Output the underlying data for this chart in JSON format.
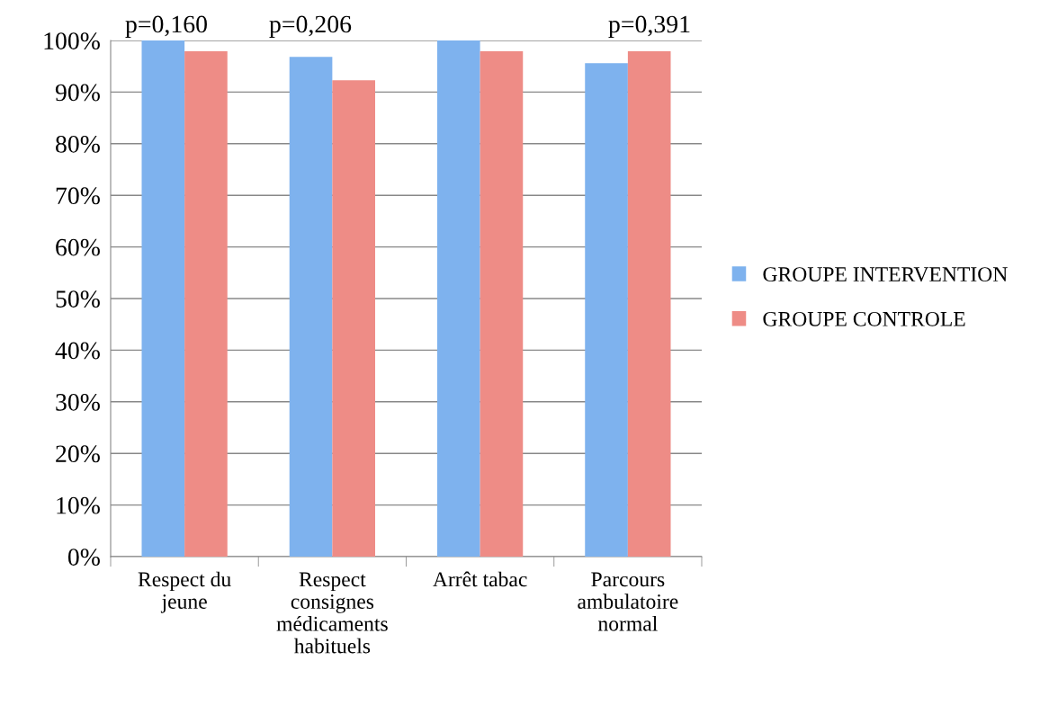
{
  "chart_data": {
    "type": "bar",
    "categories": [
      "Respect du\njeune",
      "Respect\nconsignes\nmédicaments\nhabituels",
      "Arrêt tabac",
      "Parcours\nambulatoire\nnormal"
    ],
    "series": [
      {
        "name": "GROUPE INTERVENTION",
        "color": "#7eb2ee",
        "values": [
          100,
          96.8,
          100,
          95.6
        ]
      },
      {
        "name": "GROUPE CONTROLE",
        "color": "#ee8c86",
        "values": [
          97.9,
          92.3,
          97.9,
          97.9
        ]
      }
    ],
    "ylim": [
      0,
      100
    ],
    "yticks": [
      {
        "value": 0,
        "label": "0%"
      },
      {
        "value": 10,
        "label": "10%"
      },
      {
        "value": 20,
        "label": "20%"
      },
      {
        "value": 30,
        "label": "30%"
      },
      {
        "value": 40,
        "label": "40%"
      },
      {
        "value": 50,
        "label": "50%"
      },
      {
        "value": 60,
        "label": "60%"
      },
      {
        "value": 70,
        "label": "70%"
      },
      {
        "value": 80,
        "label": "80%"
      },
      {
        "value": 90,
        "label": "90%"
      },
      {
        "value": 100,
        "label": "100%"
      }
    ],
    "annotations": [
      "p=0,160",
      "p=0,206",
      "p=0,391"
    ],
    "grid": "y",
    "legend": "right"
  }
}
